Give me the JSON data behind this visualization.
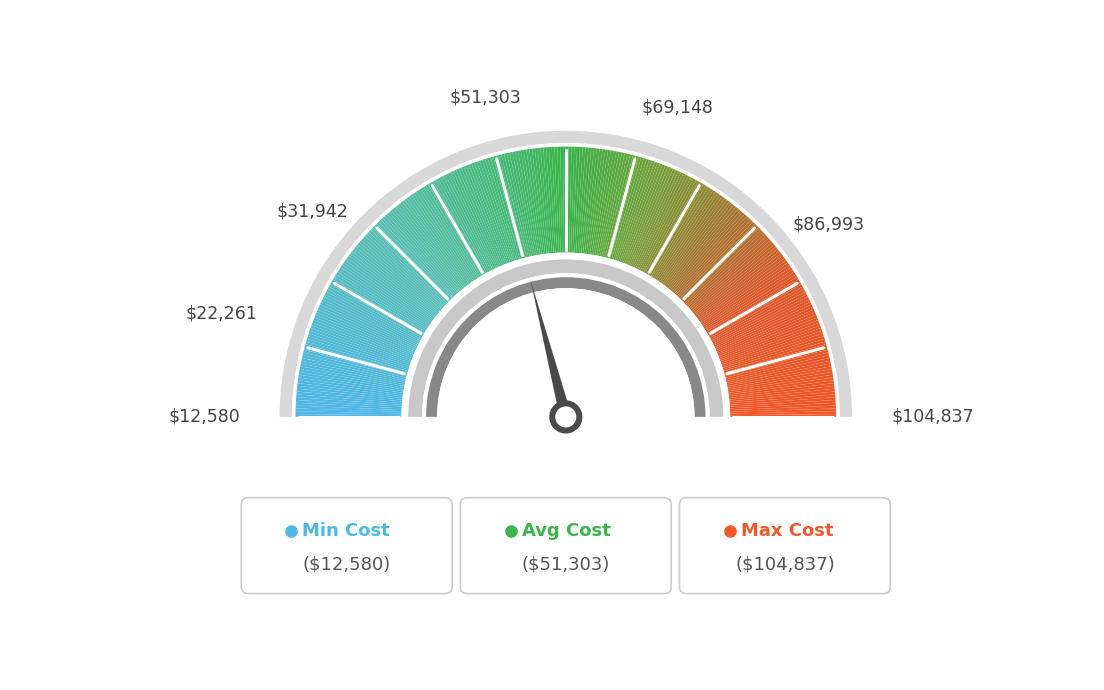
{
  "min_val": 12580,
  "max_val": 104837,
  "avg_val": 51303,
  "tick_labels": [
    "$12,580",
    "$22,261",
    "$31,942",
    "$51,303",
    "$69,148",
    "$86,993",
    "$104,837"
  ],
  "tick_values": [
    12580,
    22261,
    31942,
    51303,
    69148,
    86993,
    104837
  ],
  "legend": [
    {
      "label": "Min Cost",
      "value": "($12,580)",
      "color": "#4ab8e8"
    },
    {
      "label": "Avg Cost",
      "value": "($51,303)",
      "color": "#3ab54a"
    },
    {
      "label": "Max Cost",
      "value": "($104,837)",
      "color": "#f05a28"
    }
  ],
  "needle_value": 51303,
  "background_color": "#ffffff",
  "color_stops": [
    [
      0.0,
      [
        78,
        182,
        232
      ]
    ],
    [
      0.25,
      [
        90,
        190,
        180
      ]
    ],
    [
      0.42,
      [
        72,
        185,
        120
      ]
    ],
    [
      0.5,
      [
        58,
        181,
        74
      ]
    ],
    [
      0.62,
      [
        120,
        160,
        60
      ]
    ],
    [
      0.72,
      [
        165,
        120,
        50
      ]
    ],
    [
      0.82,
      [
        220,
        90,
        45
      ]
    ],
    [
      1.0,
      [
        240,
        88,
        40
      ]
    ]
  ]
}
